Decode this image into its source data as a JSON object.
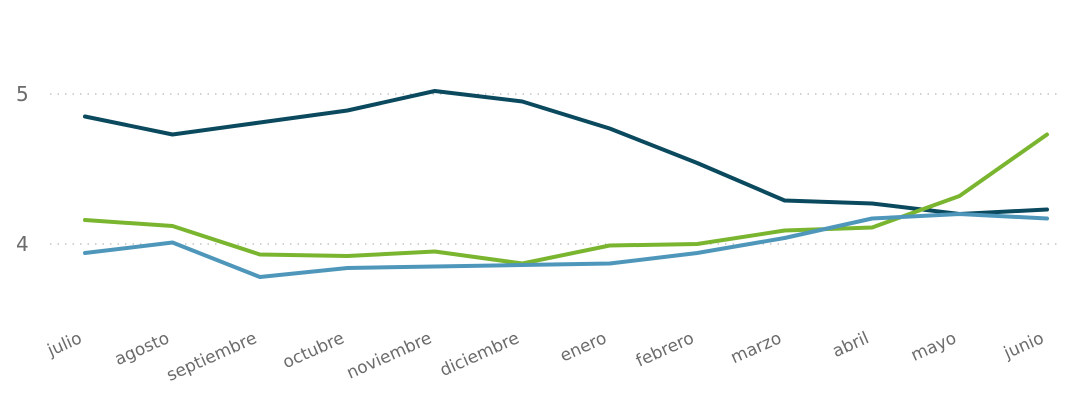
{
  "chart_data": {
    "type": "line",
    "categories": [
      "julio",
      "agosto",
      "septiembre",
      "octubre",
      "noviembre",
      "diciembre",
      "enero",
      "febrero",
      "marzo",
      "abril",
      "mayo",
      "junio"
    ],
    "y_ticks": [
      "4",
      "5"
    ],
    "ylim": [
      3.5,
      5.6
    ],
    "grid": true,
    "series": [
      {
        "color": "#0b4a5e",
        "values": [
          4.85,
          4.73,
          4.81,
          4.89,
          5.02,
          4.95,
          4.77,
          4.54,
          4.29,
          4.27,
          4.2,
          4.23
        ]
      },
      {
        "color": "#7ab52f",
        "values": [
          4.16,
          4.12,
          3.93,
          3.92,
          3.95,
          3.87,
          3.99,
          4.0,
          4.09,
          4.11,
          4.32,
          4.73
        ]
      },
      {
        "color": "#4e97bb",
        "values": [
          3.94,
          4.01,
          3.78,
          3.84,
          3.85,
          3.86,
          3.87,
          3.94,
          4.04,
          4.17,
          4.2,
          4.17
        ]
      }
    ]
  }
}
